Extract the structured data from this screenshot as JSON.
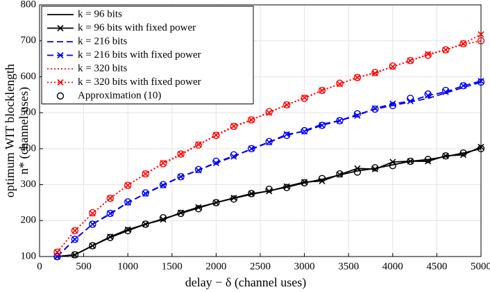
{
  "chart_data": {
    "type": "line",
    "x_label": "delay − δ (channel uses)",
    "y_label": [
      "optimum WIT blocklength",
      "n* (channel uses)"
    ],
    "x": [
      200,
      400,
      600,
      800,
      1000,
      1200,
      1400,
      1600,
      1800,
      2000,
      2200,
      2400,
      2600,
      2800,
      3000,
      3200,
      3400,
      3600,
      3800,
      4000,
      4200,
      4400,
      4600,
      4800,
      5000
    ],
    "xlim": [
      0,
      5000
    ],
    "xticks": [
      0,
      500,
      1000,
      1500,
      2000,
      2500,
      3000,
      3500,
      4000,
      4500,
      5000
    ],
    "ylim": [
      100,
      800
    ],
    "yticks": [
      100,
      200,
      300,
      400,
      500,
      600,
      700,
      800
    ],
    "grid": true,
    "legend": "upper left",
    "series": [
      {
        "name": "k = 96 bits",
        "color": "#000000",
        "dash": "solid",
        "marker": "none",
        "values": [
          100,
          105,
          130,
          153,
          172,
          190,
          205,
          220,
          235,
          250,
          262,
          273,
          283,
          293,
          305,
          315,
          327,
          338,
          345,
          355,
          365,
          370,
          378,
          388,
          400
        ]
      },
      {
        "name": "k = 96 bits with fixed power",
        "color": "#000000",
        "dash": "solid",
        "marker": "x",
        "values": [
          100,
          105,
          130,
          155,
          175,
          190,
          203,
          222,
          237,
          250,
          263,
          275,
          282,
          295,
          307,
          310,
          328,
          345,
          343,
          363,
          365,
          365,
          380,
          383,
          405
        ]
      },
      {
        "name": "k = 216 bits",
        "color": "#0000ee",
        "dash": "dashed",
        "marker": "none",
        "values": [
          100,
          148,
          190,
          218,
          250,
          275,
          300,
          322,
          340,
          362,
          380,
          398,
          418,
          437,
          450,
          468,
          478,
          495,
          510,
          520,
          530,
          540,
          555,
          570,
          585
        ]
      },
      {
        "name": "k = 216 bits with fixed power",
        "color": "#0000ee",
        "dash": "dashed",
        "marker": "x",
        "values": [
          100,
          148,
          190,
          220,
          250,
          275,
          298,
          322,
          340,
          360,
          378,
          400,
          418,
          440,
          448,
          465,
          478,
          492,
          512,
          525,
          532,
          548,
          558,
          575,
          588
        ]
      },
      {
        "name": "k = 320 bits",
        "color": "#ff0000",
        "dash": "dotted",
        "marker": "none",
        "values": [
          112,
          172,
          220,
          262,
          298,
          330,
          358,
          383,
          410,
          437,
          460,
          480,
          502,
          522,
          540,
          562,
          580,
          598,
          612,
          628,
          645,
          660,
          675,
          690,
          700
        ]
      },
      {
        "name": "k = 320 bits with fixed power",
        "color": "#ff0000",
        "dash": "dotted",
        "marker": "x",
        "values": [
          112,
          172,
          220,
          262,
          298,
          330,
          360,
          385,
          412,
          438,
          463,
          480,
          500,
          522,
          542,
          562,
          580,
          598,
          610,
          628,
          645,
          663,
          675,
          692,
          718
        ]
      }
    ],
    "approximation": {
      "name": "Approximation (10)",
      "color": "#000000",
      "marker": "o",
      "series": [
        {
          "color": "#000000",
          "values": [
            100,
            105,
            130,
            153,
            172,
            190,
            208,
            220,
            233,
            250,
            260,
            275,
            287,
            292,
            305,
            317,
            330,
            335,
            347,
            353,
            365,
            370,
            380,
            388,
            400
          ]
        },
        {
          "color": "#0000ee",
          "values": [
            100,
            148,
            190,
            220,
            252,
            277,
            300,
            322,
            342,
            365,
            383,
            400,
            420,
            437,
            450,
            465,
            478,
            497,
            510,
            520,
            540,
            552,
            562,
            575,
            585
          ]
        },
        {
          "color": "#ff0000",
          "values": [
            112,
            172,
            222,
            262,
            298,
            330,
            358,
            385,
            410,
            437,
            462,
            480,
            503,
            522,
            540,
            562,
            582,
            598,
            612,
            630,
            645,
            660,
            675,
            692,
            700
          ]
        }
      ]
    }
  }
}
